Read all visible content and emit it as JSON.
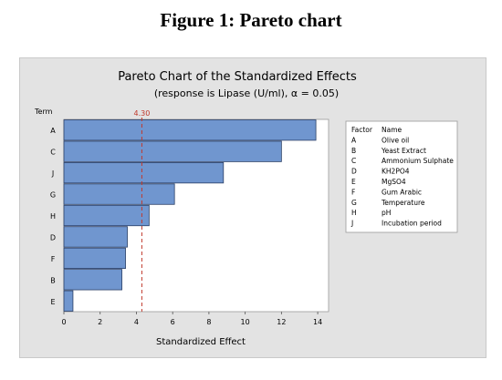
{
  "figure_caption": "Figure 1: Pareto chart",
  "chart_data": {
    "type": "bar",
    "orientation": "horizontal",
    "title": "Pareto Chart of the Standardized Effects",
    "subtitle": "(response is Lipase (U/ml), α = 0.05)",
    "xlabel": "Standardized Effect",
    "ylabel": "Term",
    "xlim": [
      0,
      14.6
    ],
    "xticks": [
      "0",
      "2",
      "4",
      "6",
      "8",
      "10",
      "12",
      "14"
    ],
    "categories": [
      "A",
      "C",
      "J",
      "G",
      "H",
      "D",
      "F",
      "B",
      "E"
    ],
    "values": [
      13.9,
      12.0,
      8.8,
      6.1,
      4.7,
      3.5,
      3.4,
      3.2,
      0.5
    ],
    "reference_line": {
      "value": 4.3,
      "label": "4.30"
    },
    "bar_color": "#7096cf",
    "legend": {
      "placement": "right",
      "header_factor": "Factor",
      "header_name": "Name",
      "entries": [
        {
          "factor": "A",
          "name": "Olive oil"
        },
        {
          "factor": "B",
          "name": "Yeast Extract"
        },
        {
          "factor": "C",
          "name": "Ammonium Sulphate"
        },
        {
          "factor": "D",
          "name": "KH2PO4"
        },
        {
          "factor": "E",
          "name": "MgSO4"
        },
        {
          "factor": "F",
          "name": "Gum Arabic"
        },
        {
          "factor": "G",
          "name": "Temperature"
        },
        {
          "factor": "H",
          "name": "pH"
        },
        {
          "factor": "J",
          "name": "Incubation period"
        }
      ]
    }
  }
}
